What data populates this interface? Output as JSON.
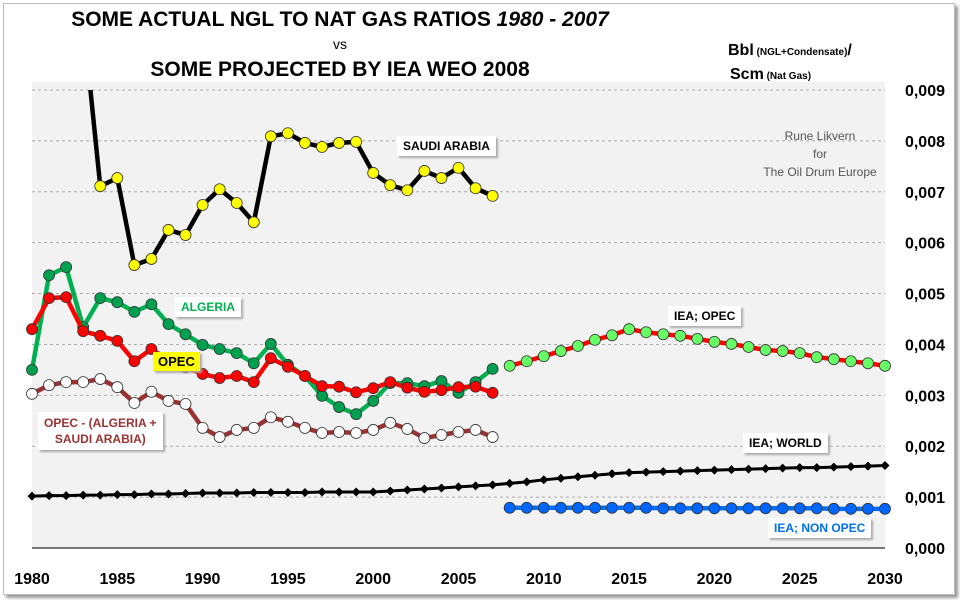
{
  "chart_data": {
    "type": "line",
    "title_line1": "SOME ACTUAL NGL TO NAT GAS RATIOS ",
    "title_line1_italic": "1980 - 2007",
    "title_vs": "vs",
    "title_line2": "SOME PROJECTED BY IEA WEO 2008",
    "ylabel_main1": "Bbl",
    "ylabel_small1": " (NGL+Condensate)",
    "ylabel_slash": "/",
    "ylabel_main2": "Scm",
    "ylabel_small2": " (Nat Gas)",
    "credit": [
      "Rune Likvern",
      "for",
      "The Oil Drum Europe"
    ],
    "xlim": [
      1980,
      2030
    ],
    "ylim": [
      0,
      0.009
    ],
    "x_ticks": [
      "1980",
      "1985",
      "1990",
      "1995",
      "2000",
      "2005",
      "2010",
      "2015",
      "2020",
      "2025",
      "2030"
    ],
    "y_ticks": [
      "0,000",
      "0,001",
      "0,002",
      "0,003",
      "0,004",
      "0,005",
      "0,006",
      "0,007",
      "0,008",
      "0,009"
    ],
    "grid": true,
    "background": "#f2f2f2",
    "series": [
      {
        "name": "OPEC - (ALGERIA + SAUDI ARABIA)",
        "line_color": "#993333",
        "marker_color": "#ffffff",
        "marker": "circle",
        "x_start": 1980,
        "values": [
          0.00303,
          0.0032,
          0.00326,
          0.00326,
          0.00332,
          0.00316,
          0.00285,
          0.00307,
          0.00289,
          0.00283,
          0.00236,
          0.00218,
          0.00232,
          0.00236,
          0.00257,
          0.00248,
          0.00236,
          0.00226,
          0.00228,
          0.00226,
          0.00232,
          0.00246,
          0.00234,
          0.00216,
          0.00222,
          0.00228,
          0.00232,
          0.00218
        ]
      },
      {
        "name": "ALGERIA",
        "line_color": "#00b050",
        "marker_color": "#00a050",
        "marker": "circle",
        "x_start": 1980,
        "values": [
          0.0035,
          0.00536,
          0.00552,
          0.00434,
          0.00491,
          0.00483,
          0.00464,
          0.00479,
          0.0044,
          0.0042,
          0.00399,
          0.00391,
          0.00383,
          0.00363,
          0.00401,
          0.0036,
          0.00338,
          0.00299,
          0.00277,
          0.00263,
          0.00289,
          0.00324,
          0.00324,
          0.00318,
          0.00328,
          0.00305,
          0.00326,
          0.00352
        ]
      },
      {
        "name": "OPEC",
        "line_color": "#ff0000",
        "marker_color": "#ff0000",
        "marker": "circle",
        "x_start": 1980,
        "values": [
          0.0043,
          0.00491,
          0.00493,
          0.00426,
          0.00417,
          0.00407,
          0.00367,
          0.00391,
          0.00369,
          0.00355,
          0.00342,
          0.00334,
          0.00338,
          0.00326,
          0.00373,
          0.00356,
          0.00338,
          0.00318,
          0.00317,
          0.00306,
          0.00314,
          0.00326,
          0.00315,
          0.00307,
          0.0031,
          0.00316,
          0.00317,
          0.00305
        ]
      },
      {
        "name": "SAUDI ARABIA",
        "line_color": "#000000",
        "marker_color": "#ffff00",
        "marker": "circle",
        "x_start": 1983,
        "values": [
          0.0104,
          0.00711,
          0.00727,
          0.00556,
          0.00568,
          0.00625,
          0.00615,
          0.00674,
          0.00705,
          0.00678,
          0.0064,
          0.00809,
          0.00815,
          0.00796,
          0.00788,
          0.00796,
          0.00798,
          0.00737,
          0.00713,
          0.00703,
          0.00741,
          0.00727,
          0.00747,
          0.00707,
          0.00692
        ]
      },
      {
        "name": "IEA; OPEC",
        "line_color": "#ff0000",
        "marker_color": "#66ff66",
        "marker": "circle",
        "x_start": 2008,
        "values": [
          0.00358,
          0.00367,
          0.00377,
          0.00387,
          0.00397,
          0.00409,
          0.00418,
          0.0043,
          0.00424,
          0.0042,
          0.00417,
          0.00411,
          0.00405,
          0.00401,
          0.00395,
          0.00389,
          0.00387,
          0.00383,
          0.00375,
          0.00371,
          0.00367,
          0.00363,
          0.00358
        ]
      },
      {
        "name": "IEA; WORLD",
        "line_color": "#000000",
        "marker_color": "#000000",
        "marker": "diamond",
        "x_start": 1980,
        "values": [
          0.00102,
          0.00103,
          0.00103,
          0.00104,
          0.00104,
          0.00105,
          0.00105,
          0.00106,
          0.00106,
          0.00107,
          0.00108,
          0.00108,
          0.00108,
          0.00109,
          0.00109,
          0.00109,
          0.00109,
          0.0011,
          0.0011,
          0.0011,
          0.0011,
          0.00112,
          0.00114,
          0.00116,
          0.00118,
          0.0012,
          0.00122,
          0.00124,
          0.00127,
          0.0013,
          0.00134,
          0.00137,
          0.0014,
          0.00143,
          0.00146,
          0.00148,
          0.00149,
          0.0015,
          0.00151,
          0.00152,
          0.00153,
          0.00154,
          0.00155,
          0.00156,
          0.00157,
          0.00158,
          0.00158,
          0.00159,
          0.0016,
          0.00161,
          0.00162
        ]
      },
      {
        "name": "IEA; NON OPEC",
        "line_color": "#0070f0",
        "marker_color": "#0066ff",
        "marker": "circle",
        "x_start": 2008,
        "values": [
          0.00079,
          0.00079,
          0.00079,
          0.00079,
          0.00079,
          0.00079,
          0.00079,
          0.00079,
          0.00079,
          0.00078,
          0.00078,
          0.00078,
          0.00078,
          0.00078,
          0.00078,
          0.00078,
          0.00078,
          0.00078,
          0.00078,
          0.00077,
          0.00077,
          0.00077,
          0.00077
        ]
      }
    ],
    "labels": {
      "saudi": {
        "text": "SAUDI ARABIA",
        "color": "#000000"
      },
      "algeria": {
        "text": "ALGERIA",
        "color": "#00b050"
      },
      "opec": {
        "text": "OPEC",
        "color": "#000000",
        "bg": "#ffff00"
      },
      "opec_minus_1": {
        "text": "OPEC - (ALGERIA +",
        "color": "#993333"
      },
      "opec_minus_2": {
        "text": "SAUDI ARABIA)",
        "color": "#993333"
      },
      "iea_opec": {
        "text": "IEA; OPEC",
        "color": "#000000"
      },
      "iea_world": {
        "text": "IEA; WORLD",
        "color": "#000000"
      },
      "iea_nonopec": {
        "text": "IEA; NON OPEC",
        "color": "#0070f0"
      }
    }
  }
}
